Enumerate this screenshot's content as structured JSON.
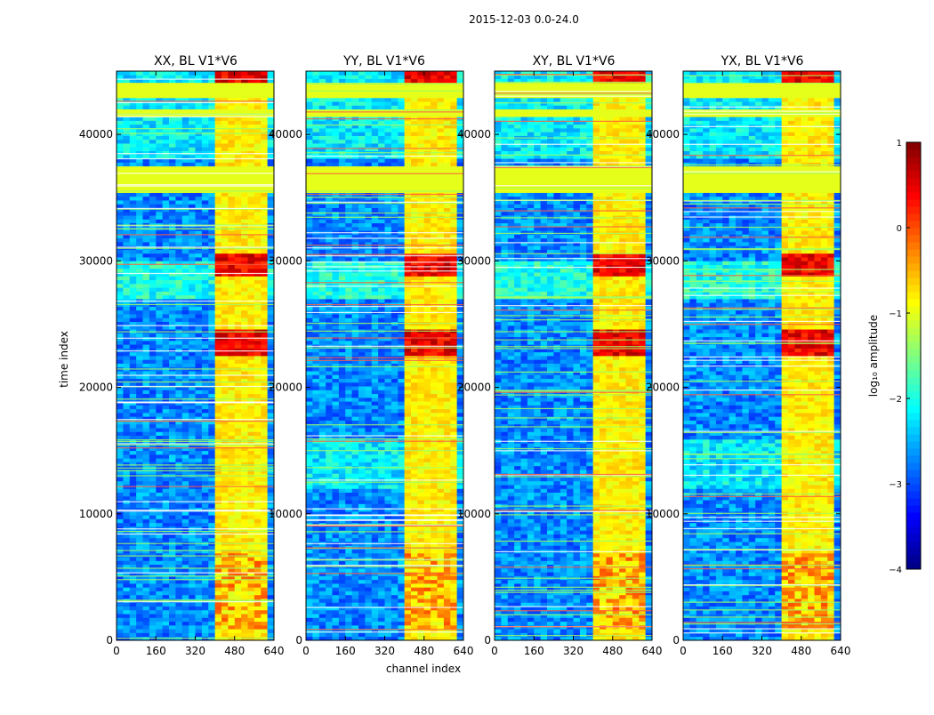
{
  "chart_data": {
    "type": "heatmap",
    "suptitle": "2015-12-03 0.0-24.0",
    "xlabel": "channel index",
    "ylabel": "time index",
    "xlim": [
      0,
      640
    ],
    "ylim": [
      0,
      45000
    ],
    "xticks": [
      "0",
      "160",
      "320",
      "480",
      "640"
    ],
    "yticks": [
      "0",
      "10000",
      "20000",
      "30000",
      "40000"
    ],
    "xtick_values": [
      0,
      160,
      320,
      480,
      640
    ],
    "ytick_values": [
      0,
      10000,
      20000,
      30000,
      40000
    ],
    "panels": [
      {
        "title": "XX, BL V1*V6"
      },
      {
        "title": "YY, BL V1*V6"
      },
      {
        "title": "XY, BL V1*V6"
      },
      {
        "title": "YX, BL V1*V6"
      }
    ],
    "colorbar": {
      "label": "log₁₀ amplitude",
      "vmin": -4,
      "vmax": 1,
      "ticks": [
        "1",
        "0",
        "−1",
        "−2",
        "−3",
        "−4"
      ],
      "tick_values": [
        1,
        0,
        -1,
        -2,
        -3,
        -4
      ],
      "colormap": "jet"
    },
    "flagged_time_bands": [
      {
        "start": 43000,
        "end": 44000,
        "level": -1.0
      },
      {
        "start": 35500,
        "end": 37500,
        "level": -1.0
      },
      {
        "start": 41500,
        "end": 42000,
        "level": -1.0
      }
    ],
    "rfi_channel_band": [
      405,
      600
    ],
    "strong_rfi_time_ranges": [
      [
        28700,
        30500
      ],
      [
        22500,
        24500
      ],
      [
        44000,
        45000
      ]
    ]
  },
  "colors": {
    "background": "#ffffff",
    "axes_edge": "#000000",
    "flag_fill": "#a0ff60"
  }
}
